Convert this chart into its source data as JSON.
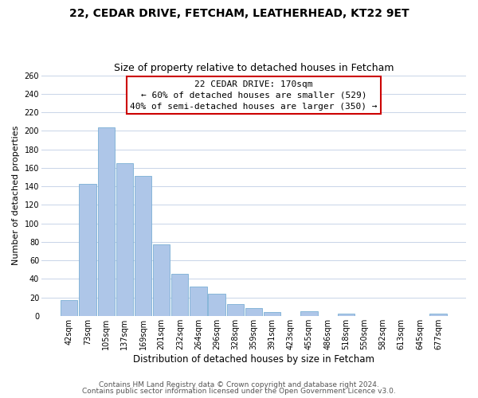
{
  "title": "22, CEDAR DRIVE, FETCHAM, LEATHERHEAD, KT22 9ET",
  "subtitle": "Size of property relative to detached houses in Fetcham",
  "xlabel": "Distribution of detached houses by size in Fetcham",
  "ylabel": "Number of detached properties",
  "bar_color": "#aec6e8",
  "bar_edge_color": "#7aafd4",
  "background_color": "#ffffff",
  "grid_color": "#c8d4e8",
  "annotation_box_color": "#ffffff",
  "annotation_box_edge": "#cc0000",
  "bin_labels": [
    "42sqm",
    "73sqm",
    "105sqm",
    "137sqm",
    "169sqm",
    "201sqm",
    "232sqm",
    "264sqm",
    "296sqm",
    "328sqm",
    "359sqm",
    "391sqm",
    "423sqm",
    "455sqm",
    "486sqm",
    "518sqm",
    "550sqm",
    "582sqm",
    "613sqm",
    "645sqm",
    "677sqm"
  ],
  "bar_heights": [
    17,
    143,
    204,
    165,
    151,
    77,
    45,
    32,
    24,
    13,
    8,
    4,
    0,
    5,
    0,
    2,
    0,
    0,
    0,
    0,
    2
  ],
  "ylim": [
    0,
    260
  ],
  "yticks": [
    0,
    20,
    40,
    60,
    80,
    100,
    120,
    140,
    160,
    180,
    200,
    220,
    240,
    260
  ],
  "property_bar_index": 4,
  "annotation_title": "22 CEDAR DRIVE: 170sqm",
  "annotation_line1": "← 60% of detached houses are smaller (529)",
  "annotation_line2": "40% of semi-detached houses are larger (350) →",
  "footer_line1": "Contains HM Land Registry data © Crown copyright and database right 2024.",
  "footer_line2": "Contains public sector information licensed under the Open Government Licence v3.0.",
  "title_fontsize": 10,
  "subtitle_fontsize": 9,
  "xlabel_fontsize": 8.5,
  "ylabel_fontsize": 8,
  "tick_fontsize": 7,
  "annotation_fontsize": 8,
  "footer_fontsize": 6.5
}
